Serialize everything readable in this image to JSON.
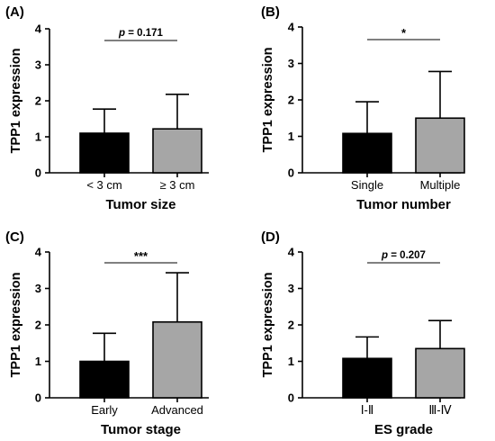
{
  "chart_data": [
    {
      "type": "bar",
      "panel": "(A)",
      "categories": [
        "< 3 cm",
        "≥ 3 cm"
      ],
      "values": [
        1.1,
        1.22
      ],
      "error_upper": [
        1.77,
        2.18
      ],
      "colors": [
        "#000000",
        "#a6a6a6"
      ],
      "xlabel": "Tumor size",
      "ylabel": "TPP1 expression",
      "ylim": [
        0,
        4
      ],
      "yticks": [
        "0",
        "1",
        "2",
        "3",
        "4"
      ],
      "significance": {
        "p_symbol": "p",
        "p_text": " = 0.171",
        "stars": ""
      }
    },
    {
      "type": "bar",
      "panel": "(B)",
      "categories": [
        "Single",
        "Multiple"
      ],
      "values": [
        1.08,
        1.5
      ],
      "error_upper": [
        1.95,
        2.78
      ],
      "colors": [
        "#000000",
        "#a6a6a6"
      ],
      "xlabel": "Tumor number",
      "ylabel": "TPP1 expression",
      "ylim": [
        0,
        4
      ],
      "yticks": [
        "0",
        "1",
        "2",
        "3",
        "4"
      ],
      "significance": {
        "p_symbol": "",
        "p_text": "",
        "stars": "*"
      }
    },
    {
      "type": "bar",
      "panel": "(C)",
      "categories": [
        "Early",
        "Advanced"
      ],
      "values": [
        1.0,
        2.08
      ],
      "error_upper": [
        1.77,
        3.43
      ],
      "colors": [
        "#000000",
        "#a6a6a6"
      ],
      "xlabel": "Tumor stage",
      "ylabel": "TPP1 expression",
      "ylim": [
        0,
        4
      ],
      "yticks": [
        "0",
        "1",
        "2",
        "3",
        "4"
      ],
      "significance": {
        "p_symbol": "",
        "p_text": "",
        "stars": "***"
      }
    },
    {
      "type": "bar",
      "panel": "(D)",
      "categories": [
        "Ⅰ-Ⅱ",
        "Ⅲ-Ⅳ"
      ],
      "values": [
        1.08,
        1.35
      ],
      "error_upper": [
        1.67,
        2.12
      ],
      "colors": [
        "#000000",
        "#a6a6a6"
      ],
      "xlabel": "ES grade",
      "ylabel": "TPP1 expression",
      "ylim": [
        0,
        4
      ],
      "yticks": [
        "0",
        "1",
        "2",
        "3",
        "4"
      ],
      "significance": {
        "p_symbol": "p",
        "p_text": " = 0.207",
        "stars": ""
      }
    }
  ]
}
